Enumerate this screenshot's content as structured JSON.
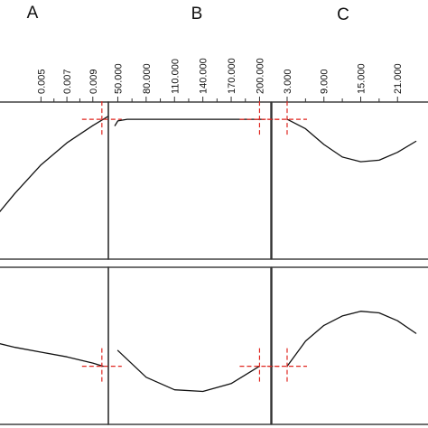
{
  "chart_data": [
    {
      "type": "line",
      "column": "A",
      "row": 1,
      "x_ticks": [
        "0.005",
        "0.007",
        "0.009"
      ],
      "x_tick_values": [
        0.005,
        0.007,
        0.009
      ],
      "xlim": [
        0.001,
        0.0102
      ],
      "ylim": [
        0,
        1
      ],
      "x": [
        0.001,
        0.003,
        0.005,
        0.007,
        0.009,
        0.0102
      ],
      "y": [
        0.22,
        0.42,
        0.6,
        0.74,
        0.85,
        0.91
      ],
      "current_x": 0.0097,
      "current_y": 0.89
    },
    {
      "type": "line",
      "column": "B",
      "row": 1,
      "x_ticks": [
        "50.000",
        "80.000",
        "110.000",
        "140.000",
        "170.000",
        "200.000"
      ],
      "x_tick_values": [
        50,
        80,
        110,
        140,
        170,
        200
      ],
      "xlim": [
        40,
        212
      ],
      "ylim": [
        0,
        1
      ],
      "x": [
        47,
        50,
        60,
        80,
        110,
        140,
        170,
        200,
        205
      ],
      "y": [
        0.85,
        0.88,
        0.89,
        0.89,
        0.89,
        0.89,
        0.89,
        0.89,
        0.89
      ],
      "current_x": 200,
      "current_y": 0.89
    },
    {
      "type": "line",
      "column": "C",
      "row": 1,
      "x_ticks": [
        "3.000",
        "9.000",
        "15.000",
        "21.000"
      ],
      "x_tick_values": [
        3,
        9,
        15,
        21
      ],
      "xlim": [
        0.5,
        27
      ],
      "ylim": [
        0,
        1
      ],
      "x": [
        3,
        6,
        9,
        12,
        15,
        18,
        21,
        24
      ],
      "y": [
        0.89,
        0.83,
        0.73,
        0.65,
        0.62,
        0.63,
        0.68,
        0.75
      ],
      "current_x": 3,
      "current_y": 0.89
    },
    {
      "type": "line",
      "column": "A",
      "row": 2,
      "xlim": [
        0.001,
        0.0102
      ],
      "ylim": [
        0,
        1
      ],
      "x": [
        0.001,
        0.003,
        0.005,
        0.007,
        0.009,
        0.0098
      ],
      "y": [
        0.53,
        0.49,
        0.46,
        0.43,
        0.39,
        0.37
      ],
      "current_x": 0.0097,
      "current_y": 0.37
    },
    {
      "type": "line",
      "column": "B",
      "row": 2,
      "xlim": [
        40,
        212
      ],
      "ylim": [
        0,
        1
      ],
      "x": [
        50,
        80,
        110,
        140,
        170,
        200
      ],
      "y": [
        0.47,
        0.3,
        0.22,
        0.21,
        0.26,
        0.37
      ],
      "current_x": 200,
      "current_y": 0.37
    },
    {
      "type": "line",
      "column": "C",
      "row": 2,
      "xlim": [
        0.5,
        27
      ],
      "ylim": [
        0,
        1
      ],
      "x": [
        3,
        6,
        9,
        12,
        15,
        18,
        21,
        24
      ],
      "y": [
        0.37,
        0.53,
        0.63,
        0.69,
        0.72,
        0.71,
        0.66,
        0.58
      ],
      "current_x": 3,
      "current_y": 0.37
    }
  ],
  "columns": [
    "A",
    "B",
    "C"
  ],
  "colors": {
    "curve": "#111111",
    "frame": "#333333",
    "crosshair": "#e0261f",
    "background": "#ffffff"
  }
}
